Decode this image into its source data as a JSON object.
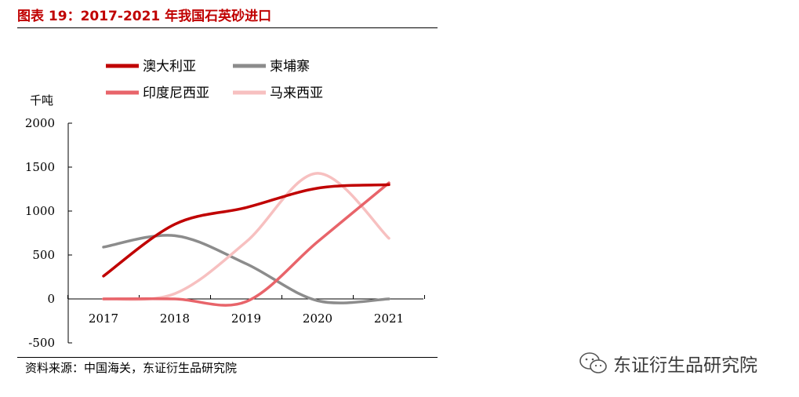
{
  "figure": {
    "title": "图表 19：2017-2021 年我国石英砂进口",
    "source": "资料来源：中国海关，东证衍生品研究院",
    "watermark": "东证衍生品研究院",
    "watermark_icon": "wechat-icon"
  },
  "chart_data": {
    "type": "line",
    "title": "图表 19：2017-2021 年我国石英砂进口",
    "xlabel": "",
    "ylabel": "千吨",
    "categories": [
      "2017",
      "2018",
      "2019",
      "2020",
      "2021"
    ],
    "ylim": [
      -500,
      2000
    ],
    "yticks": [
      2000,
      1500,
      1000,
      500,
      0,
      -500
    ],
    "grid": false,
    "legend_position": "top",
    "series": [
      {
        "name": "澳大利亚",
        "color": "#c00000",
        "values": [
          260,
          850,
          1040,
          1260,
          1300
        ]
      },
      {
        "name": "柬埔寨",
        "color": "#8c8c8c",
        "values": [
          590,
          720,
          400,
          -20,
          0
        ]
      },
      {
        "name": "印度尼西亚",
        "color": "#e8646a",
        "values": [
          0,
          0,
          -30,
          650,
          1320
        ]
      },
      {
        "name": "马来西亚",
        "color": "#f7c0c0",
        "values": [
          0,
          60,
          650,
          1430,
          690
        ]
      }
    ]
  }
}
